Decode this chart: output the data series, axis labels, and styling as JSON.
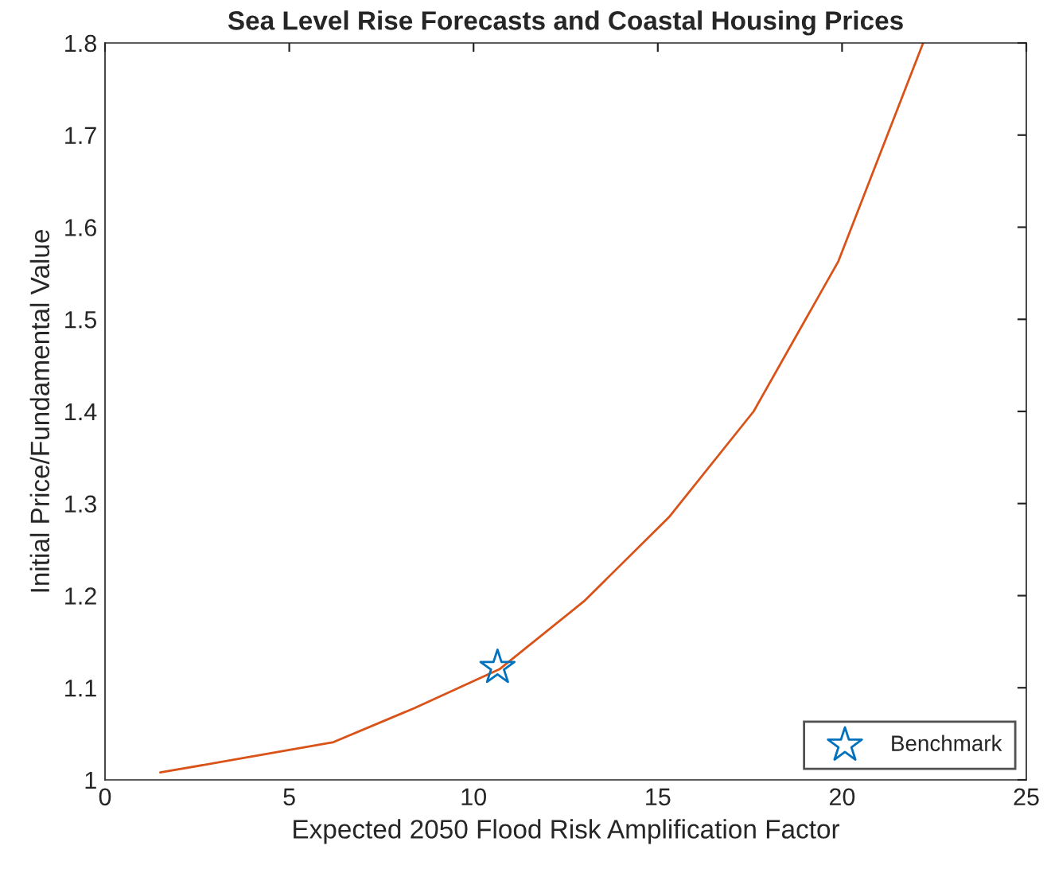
{
  "chart_data": {
    "type": "line",
    "title": "Sea Level Rise Forecasts and Coastal Housing Prices",
    "xlabel": "Expected 2050 Flood Risk Amplification Factor",
    "ylabel": "Initial Price/Fundamental Value",
    "series": [
      {
        "color": "#d95319",
        "x": [
          1.5,
          3.8,
          6.2,
          8.4,
          10.7,
          13.0,
          15.3,
          17.6,
          19.9,
          22.2
        ],
        "values": [
          1.008,
          1.024,
          1.041,
          1.078,
          1.12,
          1.194,
          1.285,
          1.4,
          1.563,
          1.8
        ]
      },
      {
        "type": "scatter",
        "name": "Benchmark",
        "color": "#0072bd",
        "marker": "star",
        "x": [
          10.65
        ],
        "values": [
          1.122
        ]
      }
    ],
    "xlim": [
      0,
      25
    ],
    "xticks": [
      0,
      5,
      10,
      15,
      20,
      25
    ],
    "ylim": [
      1,
      1.8
    ],
    "yticks": [
      1,
      1.1,
      1.2,
      1.3,
      1.4,
      1.5,
      1.6,
      1.7,
      1.8
    ],
    "grid": false,
    "legend": "bottom right"
  }
}
